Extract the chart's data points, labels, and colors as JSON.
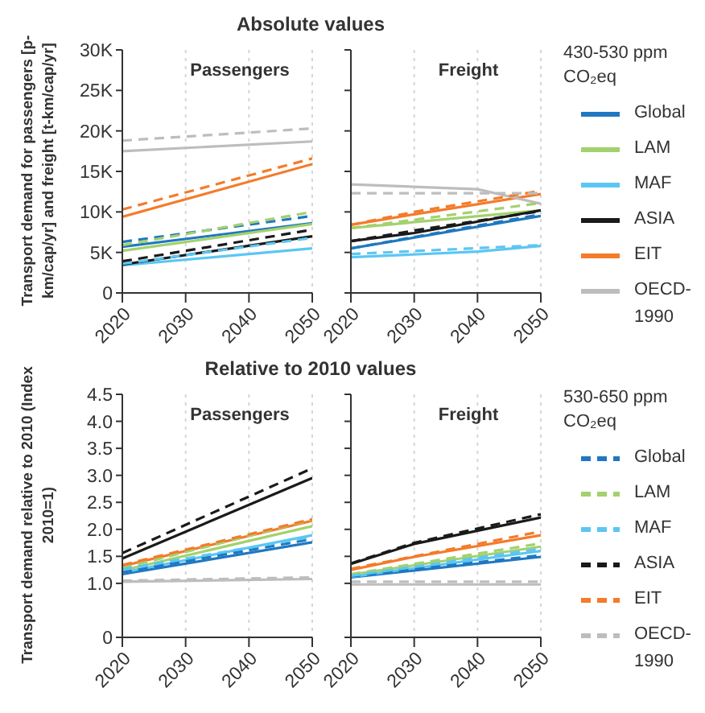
{
  "chart_data": [
    {
      "type": "line",
      "title": "Absolute values",
      "subtitle": "Passengers",
      "ylabel": "Transport demand for passengers [p-km/cap/yr] and freight [t-km/cap/yr]",
      "xlim": [
        2020,
        2050
      ],
      "xticks": [
        2020,
        2030,
        2040,
        2050
      ],
      "ylim": [
        0,
        30000
      ],
      "yticks": [
        0,
        {
          "value": 5000,
          "label": "5K"
        },
        {
          "value": 10000,
          "label": "10K"
        },
        {
          "value": 15000,
          "label": "15K"
        },
        {
          "value": 20000,
          "label": "20K"
        },
        {
          "value": 25000,
          "label": "25K"
        },
        {
          "value": 30000,
          "label": "30K"
        }
      ],
      "grid": "x",
      "marker": "none",
      "series": [
        {
          "color": "#1f78c1",
          "line_style": "solid",
          "x": [
            2020,
            2050
          ],
          "values": [
            5700,
            8600
          ]
        },
        {
          "color": "#a3d16e",
          "line_style": "solid",
          "x": [
            2020,
            2050
          ],
          "values": [
            5200,
            8500
          ]
        },
        {
          "color": "#5cc6f2",
          "line_style": "solid",
          "x": [
            2020,
            2050
          ],
          "values": [
            3400,
            5500
          ]
        },
        {
          "color": "#1a1a1a",
          "line_style": "solid",
          "x": [
            2020,
            2050
          ],
          "values": [
            3500,
            7000
          ]
        },
        {
          "color": "#f47b2a",
          "line_style": "solid",
          "x": [
            2020,
            2050
          ],
          "values": [
            9400,
            15900
          ]
        },
        {
          "color": "#bdbdbd",
          "line_style": "solid",
          "x": [
            2020,
            2050
          ],
          "values": [
            17500,
            18700
          ]
        },
        {
          "color": "#1f78c1",
          "line_style": "dashed",
          "x": [
            2020,
            2050
          ],
          "values": [
            6300,
            9500
          ]
        },
        {
          "color": "#a3d16e",
          "line_style": "dashed",
          "x": [
            2020,
            2050
          ],
          "values": [
            5900,
            10000
          ]
        },
        {
          "color": "#5cc6f2",
          "line_style": "dashed",
          "x": [
            2020,
            2050
          ],
          "values": [
            3600,
            6800
          ]
        },
        {
          "color": "#1a1a1a",
          "line_style": "dashed",
          "x": [
            2020,
            2050
          ],
          "values": [
            3900,
            7800
          ]
        },
        {
          "color": "#f47b2a",
          "line_style": "dashed",
          "x": [
            2020,
            2050
          ],
          "values": [
            10300,
            16600
          ]
        },
        {
          "color": "#bdbdbd",
          "line_style": "dashed",
          "x": [
            2020,
            2050
          ],
          "values": [
            18800,
            20300
          ]
        }
      ]
    },
    {
      "type": "line",
      "subtitle": "Freight",
      "legend": "right",
      "legend_title": "430-530 ppm CO₂eq",
      "tick_labels": "x",
      "xlim": [
        2020,
        2050
      ],
      "xticks": [
        2020,
        2030,
        2040,
        2050
      ],
      "ylim": [
        0,
        30000
      ],
      "yticks": [
        0,
        5000,
        10000,
        15000,
        20000,
        25000,
        30000
      ],
      "grid": "x",
      "marker": "none",
      "series": [
        {
          "name": "Global",
          "color": "#1f78c1",
          "line_style": "solid",
          "x": [
            2020,
            2050
          ],
          "values": [
            5500,
            9500
          ]
        },
        {
          "name": "LAM",
          "color": "#a3d16e",
          "line_style": "solid",
          "x": [
            2020,
            2050
          ],
          "values": [
            8000,
            10200
          ]
        },
        {
          "name": "MAF",
          "color": "#5cc6f2",
          "line_style": "solid",
          "x": [
            2020,
            2040,
            2050
          ],
          "values": [
            4400,
            5100,
            5800
          ]
        },
        {
          "name": "ASIA",
          "color": "#1a1a1a",
          "line_style": "solid",
          "x": [
            2020,
            2030,
            2050
          ],
          "values": [
            6400,
            7400,
            10200
          ]
        },
        {
          "name": "EIT",
          "color": "#f47b2a",
          "line_style": "solid",
          "x": [
            2020,
            2030,
            2050
          ],
          "values": [
            8400,
            9700,
            12200
          ]
        },
        {
          "name": "OECD-1990",
          "color": "#bdbdbd",
          "line_style": "solid",
          "x": [
            2020,
            2040,
            2050
          ],
          "values": [
            13400,
            12800,
            11000
          ]
        },
        {
          "color": "#1f78c1",
          "line_style": "dashed",
          "x": [
            2020,
            2050
          ],
          "values": [
            5500,
            9700
          ]
        },
        {
          "color": "#a3d16e",
          "line_style": "dashed",
          "x": [
            2020,
            2050
          ],
          "values": [
            8000,
            11100
          ]
        },
        {
          "color": "#5cc6f2",
          "line_style": "dashed",
          "x": [
            2020,
            2050
          ],
          "values": [
            4800,
            5900
          ]
        },
        {
          "color": "#1a1a1a",
          "line_style": "dashed",
          "x": [
            2020,
            2030,
            2050
          ],
          "values": [
            6400,
            7700,
            10100
          ]
        },
        {
          "color": "#f47b2a",
          "line_style": "dashed",
          "x": [
            2020,
            2030,
            2050
          ],
          "values": [
            8400,
            10000,
            12600
          ]
        },
        {
          "color": "#bdbdbd",
          "line_style": "dashed",
          "x": [
            2020,
            2050
          ],
          "values": [
            12300,
            12300
          ]
        }
      ]
    },
    {
      "type": "line",
      "title": "Relative to 2010 values",
      "subtitle": "Passengers",
      "ylabel": "Transport demand relative to 2010 (Index 2010=1)",
      "xlim": [
        2020,
        2050
      ],
      "xticks": [
        2020,
        2030,
        2040,
        2050
      ],
      "ylim": [
        0,
        4.5
      ],
      "yticks": [
        0,
        {
          "value": 1,
          "label": "1.0"
        },
        1.5,
        {
          "value": 2,
          "label": "2.0"
        },
        2.5,
        {
          "value": 3,
          "label": "3.0"
        },
        3.5,
        {
          "value": 4,
          "label": "4.0"
        },
        4.5
      ],
      "grid": "x",
      "marker": "none",
      "series": [
        {
          "color": "#1f78c1",
          "line_style": "solid",
          "x": [
            2020,
            2050
          ],
          "values": [
            1.17,
            1.76
          ]
        },
        {
          "color": "#a3d16e",
          "line_style": "solid",
          "x": [
            2020,
            2050
          ],
          "values": [
            1.24,
            2.06
          ]
        },
        {
          "color": "#5cc6f2",
          "line_style": "solid",
          "x": [
            2020,
            2050
          ],
          "values": [
            1.2,
            1.89
          ]
        },
        {
          "color": "#1a1a1a",
          "line_style": "solid",
          "x": [
            2020,
            2050
          ],
          "values": [
            1.46,
            2.95
          ]
        },
        {
          "color": "#f47b2a",
          "line_style": "solid",
          "x": [
            2020,
            2050
          ],
          "values": [
            1.32,
            2.16
          ]
        },
        {
          "color": "#bdbdbd",
          "line_style": "solid",
          "x": [
            2020,
            2050
          ],
          "values": [
            1.03,
            1.08
          ]
        },
        {
          "color": "#1f78c1",
          "line_style": "dashed",
          "x": [
            2020,
            2050
          ],
          "values": [
            1.2,
            1.82
          ]
        },
        {
          "color": "#a3d16e",
          "line_style": "dashed",
          "x": [
            2020,
            2050
          ],
          "values": [
            1.28,
            2.18
          ]
        },
        {
          "color": "#5cc6f2",
          "line_style": "dashed",
          "x": [
            2020,
            2050
          ],
          "values": [
            1.26,
            1.86
          ]
        },
        {
          "color": "#1a1a1a",
          "line_style": "dashed",
          "x": [
            2020,
            2050
          ],
          "values": [
            1.56,
            3.13
          ]
        },
        {
          "color": "#f47b2a",
          "line_style": "dashed",
          "x": [
            2020,
            2050
          ],
          "values": [
            1.34,
            2.19
          ]
        },
        {
          "color": "#bdbdbd",
          "line_style": "dashed",
          "x": [
            2020,
            2050
          ],
          "values": [
            1.05,
            1.11
          ]
        }
      ]
    },
    {
      "type": "line",
      "subtitle": "Freight",
      "legend": "right",
      "legend_title": "530-650 ppm CO₂eq",
      "tick_labels": "x",
      "xlim": [
        2020,
        2050
      ],
      "xticks": [
        2020,
        2030,
        2040,
        2050
      ],
      "ylim": [
        0,
        4.5
      ],
      "yticks": [
        0,
        1,
        1.5,
        2,
        2.5,
        3,
        3.5,
        4,
        4.5
      ],
      "grid": "x",
      "marker": "none",
      "series": [
        {
          "color": "#1f78c1",
          "line_style": "solid",
          "x": [
            2020,
            2050
          ],
          "values": [
            1.11,
            1.49
          ]
        },
        {
          "color": "#a3d16e",
          "line_style": "solid",
          "x": [
            2020,
            2050
          ],
          "values": [
            1.16,
            1.68
          ]
        },
        {
          "color": "#5cc6f2",
          "line_style": "solid",
          "x": [
            2020,
            2050
          ],
          "values": [
            1.12,
            1.6
          ]
        },
        {
          "color": "#1a1a1a",
          "line_style": "solid",
          "x": [
            2020,
            2030,
            2050
          ],
          "values": [
            1.36,
            1.73,
            2.22
          ]
        },
        {
          "color": "#f47b2a",
          "line_style": "solid",
          "x": [
            2020,
            2030,
            2050
          ],
          "values": [
            1.25,
            1.49,
            1.89
          ]
        },
        {
          "color": "#bdbdbd",
          "line_style": "solid",
          "x": [
            2020,
            2050
          ],
          "values": [
            0.98,
            0.98
          ]
        },
        {
          "name": "Global",
          "color": "#1f78c1",
          "line_style": "dashed",
          "x": [
            2020,
            2050
          ],
          "values": [
            1.13,
            1.52
          ]
        },
        {
          "name": "LAM",
          "color": "#a3d16e",
          "line_style": "dashed",
          "x": [
            2020,
            2050
          ],
          "values": [
            1.17,
            1.74
          ]
        },
        {
          "name": "MAF",
          "color": "#5cc6f2",
          "line_style": "dashed",
          "x": [
            2020,
            2050
          ],
          "values": [
            1.14,
            1.64
          ]
        },
        {
          "name": "ASIA",
          "color": "#1a1a1a",
          "line_style": "dashed",
          "x": [
            2020,
            2030,
            2050
          ],
          "values": [
            1.37,
            1.75,
            2.28
          ]
        },
        {
          "name": "EIT",
          "color": "#f47b2a",
          "line_style": "dashed",
          "x": [
            2020,
            2050
          ],
          "values": [
            1.27,
            1.96
          ]
        },
        {
          "name": "OECD-1990",
          "color": "#bdbdbd",
          "line_style": "dashed",
          "x": [
            2020,
            2050
          ],
          "values": [
            1.03,
            1.03
          ]
        }
      ]
    }
  ]
}
